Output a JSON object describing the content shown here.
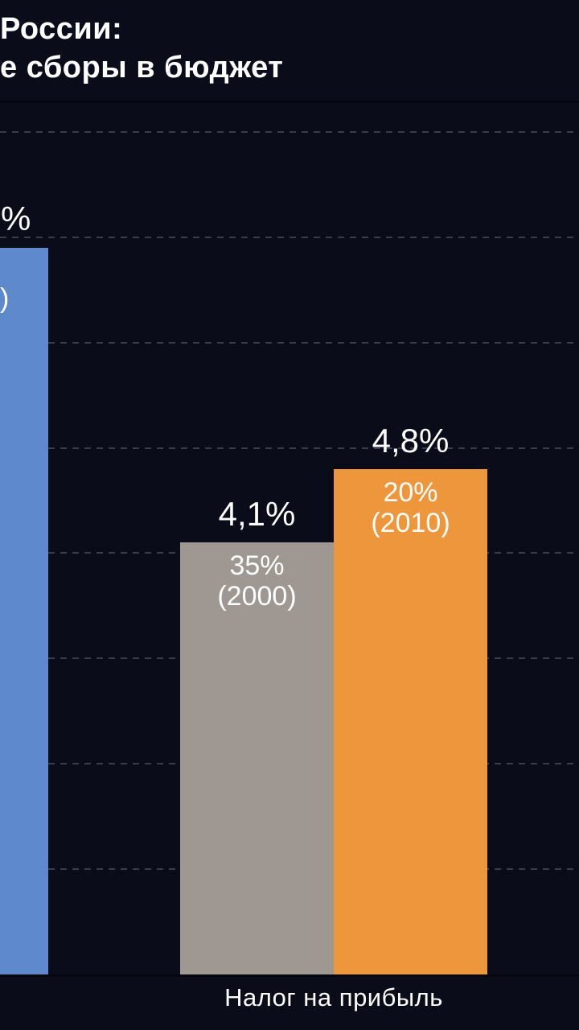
{
  "title": {
    "line1_visible": "России:",
    "line2_visible": "е сборы в бюджет"
  },
  "colors": {
    "background": "#0a0c19",
    "divider": "#05060e",
    "gridline": "rgba(168,173,192,0.30)",
    "bar_blue": "#5e8acd",
    "bar_gray": "#9e9792",
    "bar_orange": "#ee963c",
    "text": "#ffffff"
  },
  "chart_data": {
    "type": "bar",
    "title": "России: / е сборы в бюджет (заголовок обрезан слева)",
    "xlabel": "",
    "ylabel": "",
    "ylim": [
      0,
      8.3
    ],
    "unit": "% (доля сборов в бюджет)",
    "grid": "dashed horizontal gridlines, 1% step",
    "gridlines_pct": [
      1,
      2,
      3,
      4,
      5,
      6,
      7,
      8
    ],
    "legend": "none",
    "categories_visible": [
      "Налог на прибыль"
    ],
    "x_axis_label": "Налог на прибыль",
    "bars": [
      {
        "name": "cropped-left-bar",
        "color": "#5e8acd",
        "value_pct": 6.9,
        "value_label_visible": "%",
        "inner_label_visible": ")"
      },
      {
        "name": "nalog-na-pribyl-2000",
        "color": "#9e9792",
        "value_pct": 4.1,
        "value_label": "4,1%",
        "inner_line1": "35%",
        "inner_line2": "(2000)"
      },
      {
        "name": "nalog-na-pribyl-2010",
        "color": "#ee963c",
        "value_pct": 4.8,
        "value_label": "4,8%",
        "inner_line1": "20%",
        "inner_line2": "(2010)"
      }
    ]
  }
}
